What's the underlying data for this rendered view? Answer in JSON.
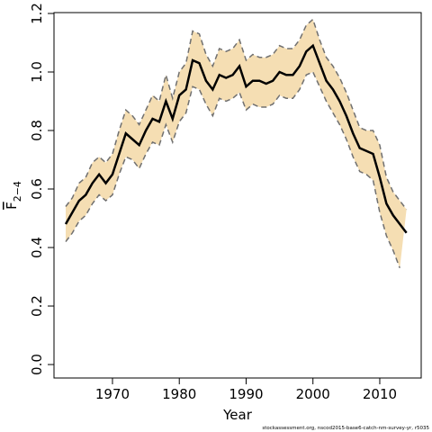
{
  "chart_data": {
    "type": "line",
    "xlabel": "Year",
    "ylabel": "F",
    "ylabel_sub": "2−4",
    "footer": "stockassessment.org, nscod2015-base6-catch-nm-survey-yr, r5035",
    "x": [
      1963,
      1964,
      1965,
      1966,
      1967,
      1968,
      1969,
      1970,
      1971,
      1972,
      1973,
      1974,
      1975,
      1976,
      1977,
      1978,
      1979,
      1980,
      1981,
      1982,
      1983,
      1984,
      1985,
      1986,
      1987,
      1988,
      1989,
      1990,
      1991,
      1992,
      1993,
      1994,
      1995,
      1996,
      1997,
      1998,
      1999,
      2000,
      2001,
      2002,
      2003,
      2004,
      2005,
      2006,
      2007,
      2008,
      2009,
      2010,
      2011,
      2012,
      2013,
      2014
    ],
    "values": [
      0.48,
      0.52,
      0.56,
      0.58,
      0.62,
      0.65,
      0.62,
      0.65,
      0.72,
      0.79,
      0.77,
      0.75,
      0.8,
      0.84,
      0.83,
      0.9,
      0.84,
      0.92,
      0.94,
      1.04,
      1.03,
      0.97,
      0.94,
      0.99,
      0.98,
      0.99,
      1.02,
      0.95,
      0.97,
      0.97,
      0.96,
      0.97,
      1.0,
      0.99,
      0.99,
      1.02,
      1.07,
      1.09,
      1.03,
      0.97,
      0.94,
      0.9,
      0.85,
      0.79,
      0.74,
      0.73,
      0.72,
      0.64,
      0.55,
      0.51,
      0.48,
      0.45
    ],
    "lower": [
      0.42,
      0.45,
      0.49,
      0.51,
      0.55,
      0.58,
      0.56,
      0.58,
      0.65,
      0.71,
      0.7,
      0.67,
      0.72,
      0.76,
      0.75,
      0.82,
      0.76,
      0.83,
      0.86,
      0.95,
      0.94,
      0.89,
      0.85,
      0.91,
      0.9,
      0.91,
      0.93,
      0.87,
      0.89,
      0.88,
      0.88,
      0.89,
      0.92,
      0.91,
      0.91,
      0.94,
      0.99,
      1.0,
      0.95,
      0.9,
      0.86,
      0.82,
      0.77,
      0.71,
      0.66,
      0.65,
      0.63,
      0.52,
      0.44,
      0.39,
      0.33,
      null
    ],
    "upper": [
      0.54,
      0.57,
      0.62,
      0.64,
      0.69,
      0.71,
      0.69,
      0.72,
      0.8,
      0.87,
      0.85,
      0.82,
      0.87,
      0.92,
      0.9,
      0.99,
      0.91,
      1.0,
      1.03,
      1.14,
      1.13,
      1.06,
      1.02,
      1.08,
      1.07,
      1.08,
      1.11,
      1.04,
      1.06,
      1.05,
      1.05,
      1.06,
      1.09,
      1.08,
      1.08,
      1.11,
      1.16,
      1.18,
      1.11,
      1.05,
      1.02,
      0.98,
      0.93,
      0.87,
      0.81,
      0.8,
      0.8,
      0.75,
      0.64,
      0.59,
      0.56,
      0.53
    ],
    "line_color": "#000000",
    "band_color": "#f5deb3",
    "bound_color": "#707070",
    "xlim": [
      1961.25,
      2016.2
    ],
    "ylim": [
      -0.046,
      1.203
    ],
    "xticks": [
      1970,
      1980,
      1990,
      2000,
      2010
    ],
    "yticks": [
      {
        "value": 0,
        "label": "0.0"
      },
      {
        "value": 0.2,
        "label": "0.2"
      },
      {
        "value": 0.4,
        "label": "0.4"
      },
      {
        "value": 0.6,
        "label": "0.6"
      },
      {
        "value": 0.8,
        "label": "0.8"
      },
      {
        "value": 1,
        "label": "1.0"
      },
      {
        "value": 1.2,
        "label": "1.2"
      }
    ]
  }
}
